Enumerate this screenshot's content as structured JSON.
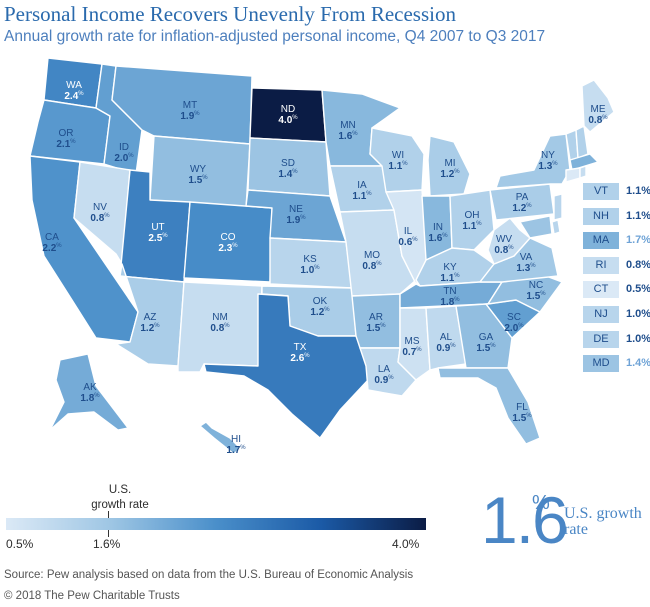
{
  "header": {
    "title": "Personal Income Recovers Unevenly From Recession",
    "subtitle": "Annual growth rate for inflation-adjusted personal income, Q4 2007 to Q3 2017"
  },
  "colors": {
    "ramp": [
      "#dbe9f6",
      "#9ec6e4",
      "#4a8fca",
      "#1b5aa6",
      "#0b1c45"
    ],
    "label_dark": "#1f4e8c",
    "label_light": "#ffffff"
  },
  "map": {
    "states": [
      {
        "abbr": "WA",
        "value": "2.4"
      },
      {
        "abbr": "OR",
        "value": "2.1"
      },
      {
        "abbr": "CA",
        "value": "2.2"
      },
      {
        "abbr": "ID",
        "value": "2.0"
      },
      {
        "abbr": "NV",
        "value": "0.8"
      },
      {
        "abbr": "MT",
        "value": "1.9"
      },
      {
        "abbr": "WY",
        "value": "1.5"
      },
      {
        "abbr": "UT",
        "value": "2.5"
      },
      {
        "abbr": "CO",
        "value": "2.3"
      },
      {
        "abbr": "AZ",
        "value": "1.2"
      },
      {
        "abbr": "NM",
        "value": "0.8"
      },
      {
        "abbr": "ND",
        "value": "4.0"
      },
      {
        "abbr": "SD",
        "value": "1.4"
      },
      {
        "abbr": "NE",
        "value": "1.9"
      },
      {
        "abbr": "KS",
        "value": "1.0"
      },
      {
        "abbr": "OK",
        "value": "1.2"
      },
      {
        "abbr": "TX",
        "value": "2.6"
      },
      {
        "abbr": "MN",
        "value": "1.6"
      },
      {
        "abbr": "IA",
        "value": "1.1"
      },
      {
        "abbr": "MO",
        "value": "0.8"
      },
      {
        "abbr": "AR",
        "value": "1.5"
      },
      {
        "abbr": "LA",
        "value": "0.9"
      },
      {
        "abbr": "WI",
        "value": "1.1"
      },
      {
        "abbr": "IL",
        "value": "0.6"
      },
      {
        "abbr": "MI",
        "value": "1.2"
      },
      {
        "abbr": "IN",
        "value": "1.6"
      },
      {
        "abbr": "OH",
        "value": "1.1"
      },
      {
        "abbr": "KY",
        "value": "1.1"
      },
      {
        "abbr": "TN",
        "value": "1.8"
      },
      {
        "abbr": "MS",
        "value": "0.7"
      },
      {
        "abbr": "AL",
        "value": "0.9"
      },
      {
        "abbr": "GA",
        "value": "1.5"
      },
      {
        "abbr": "FL",
        "value": "1.5"
      },
      {
        "abbr": "SC",
        "value": "2.0"
      },
      {
        "abbr": "NC",
        "value": "1.5"
      },
      {
        "abbr": "VA",
        "value": "1.3"
      },
      {
        "abbr": "WV",
        "value": "0.8"
      },
      {
        "abbr": "PA",
        "value": "1.2"
      },
      {
        "abbr": "NY",
        "value": "1.3"
      },
      {
        "abbr": "ME",
        "value": "0.8"
      },
      {
        "abbr": "AK",
        "value": "1.8"
      },
      {
        "abbr": "HI",
        "value": "1.7"
      }
    ],
    "value_suffix": "%"
  },
  "northeast_list": [
    {
      "abbr": "VT",
      "value": "1.1%"
    },
    {
      "abbr": "NH",
      "value": "1.1%"
    },
    {
      "abbr": "MA",
      "value": "1.7%"
    },
    {
      "abbr": "RI",
      "value": "0.8%"
    },
    {
      "abbr": "CT",
      "value": "0.5%"
    },
    {
      "abbr": "NJ",
      "value": "1.0%"
    },
    {
      "abbr": "DE",
      "value": "1.0%"
    },
    {
      "abbr": "MD",
      "value": "1.4%"
    }
  ],
  "legend": {
    "marker_label": "U.S. growth rate",
    "min_label": "0.5%",
    "mid_label": "1.6%",
    "max_label": "4.0%",
    "min_value": 0.5,
    "max_value": 4.0,
    "us_value": 1.6
  },
  "us_callout": {
    "value": "1.6",
    "percent_sign": "%",
    "caption": "U.S. growth rate"
  },
  "footer": {
    "source": "Source: Pew analysis based on data from the U.S. Bureau of Economic Analysis",
    "copyright": "© 2018 The Pew Charitable Trusts"
  }
}
